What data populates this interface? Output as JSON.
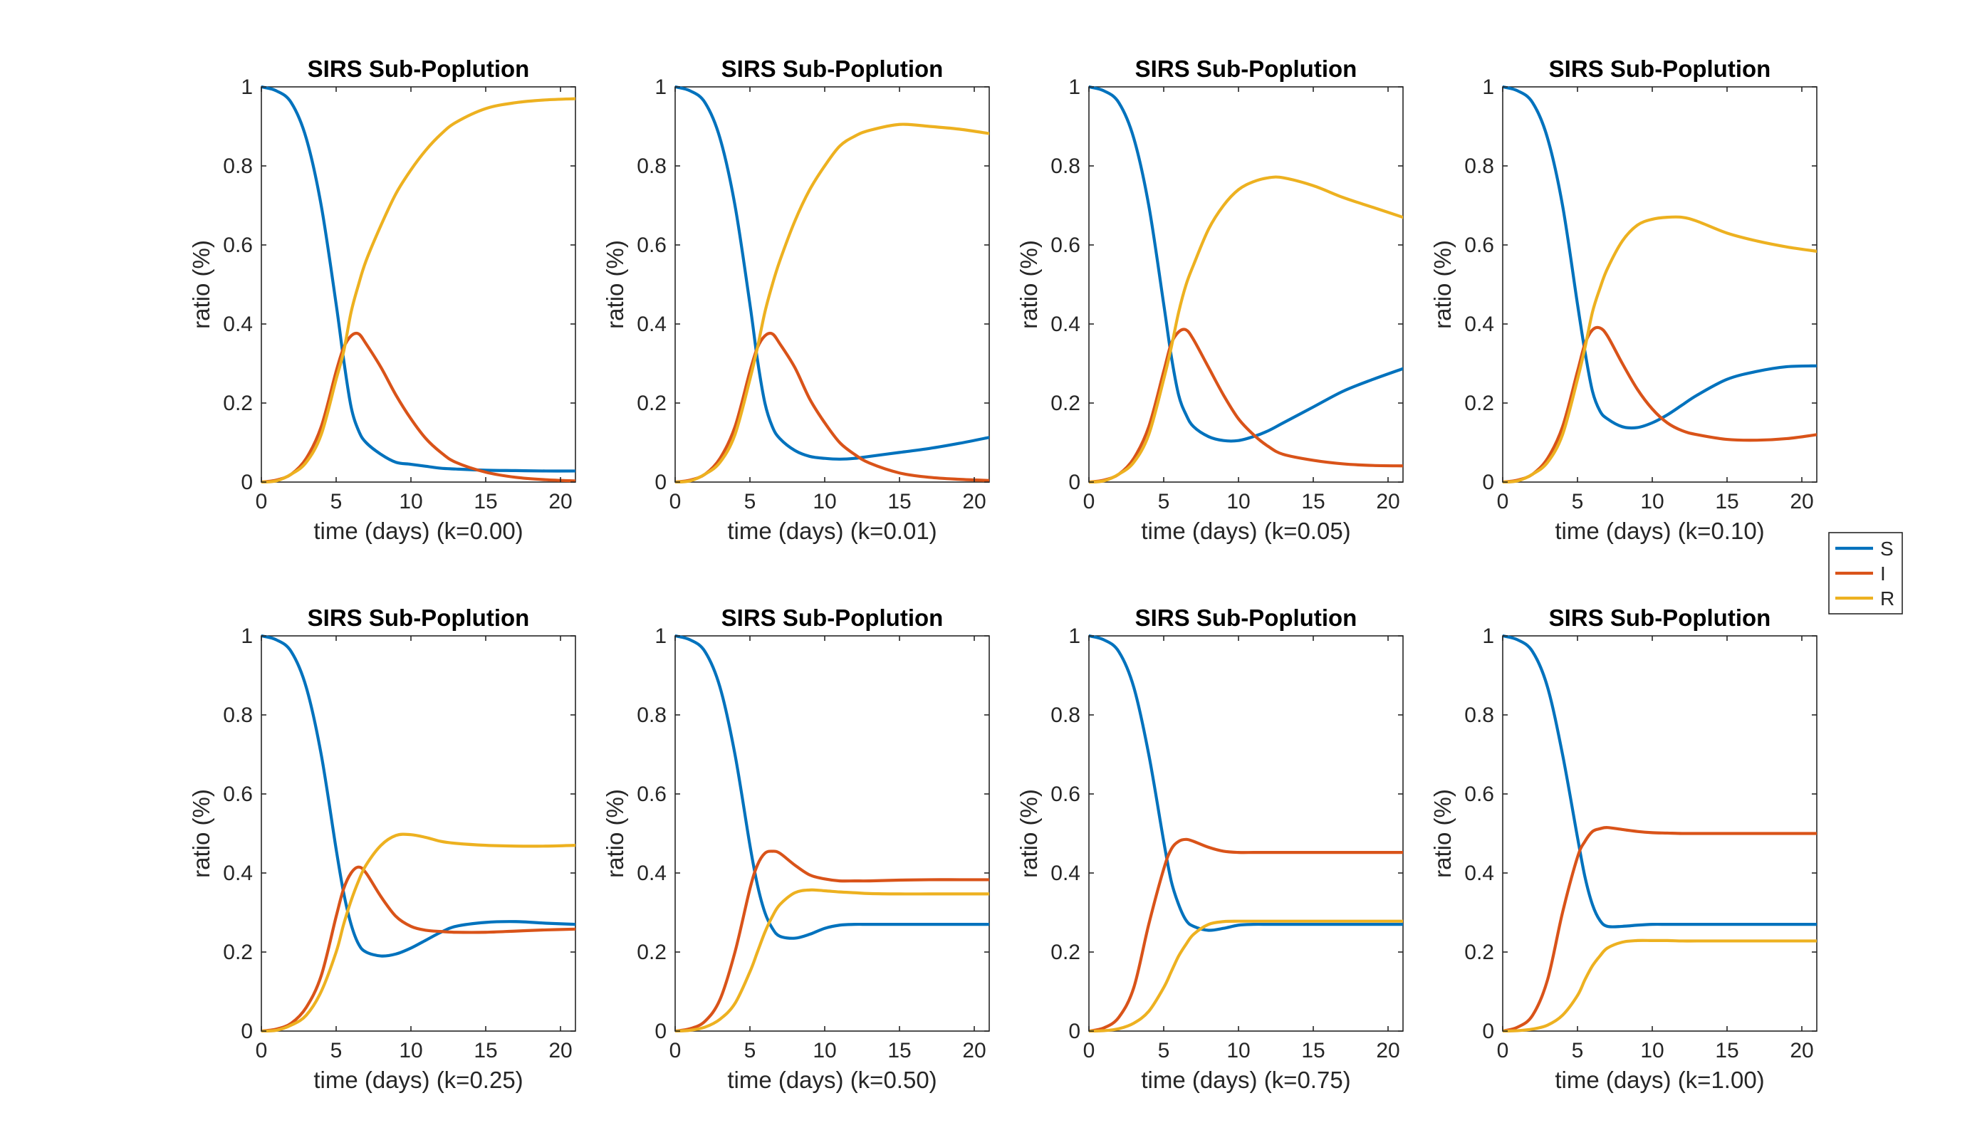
{
  "figure": {
    "background": "#ffffff",
    "axis_color": "#262626",
    "legend": {
      "placement": "right",
      "entries": [
        {
          "name": "S",
          "color": "#0072BD"
        },
        {
          "name": "I",
          "color": "#D95319"
        },
        {
          "name": "R",
          "color": "#EDB120"
        }
      ]
    }
  },
  "chart_data": [
    {
      "type": "line",
      "title": "SIRS Sub-Poplution",
      "xlabel": "time (days) (k=0.00)",
      "ylabel": "ratio (%)",
      "xlim": [
        0,
        21
      ],
      "ylim": [
        0,
        1
      ],
      "xticks": [
        "0",
        "5",
        "10",
        "15",
        "20"
      ],
      "yticks": [
        "0",
        "0.2",
        "0.4",
        "0.6",
        "0.8",
        "1"
      ],
      "grid": false,
      "x": [
        0,
        1,
        2,
        3,
        4,
        5,
        5.5,
        6,
        6.5,
        7,
        8,
        9,
        10,
        11,
        12,
        13,
        15,
        17,
        19,
        21
      ],
      "series": [
        {
          "name": "S",
          "values": [
            1.0,
            0.99,
            0.96,
            0.87,
            0.7,
            0.45,
            0.31,
            0.19,
            0.13,
            0.1,
            0.07,
            0.05,
            0.045,
            0.04,
            0.035,
            0.033,
            0.03,
            0.029,
            0.028,
            0.028
          ]
        },
        {
          "name": "I",
          "values": [
            0.0,
            0.005,
            0.02,
            0.06,
            0.14,
            0.28,
            0.34,
            0.37,
            0.375,
            0.35,
            0.29,
            0.22,
            0.16,
            0.11,
            0.075,
            0.05,
            0.025,
            0.012,
            0.006,
            0.003
          ]
        },
        {
          "name": "R",
          "values": [
            0.0,
            0.003,
            0.02,
            0.05,
            0.12,
            0.26,
            0.33,
            0.43,
            0.5,
            0.56,
            0.65,
            0.73,
            0.79,
            0.84,
            0.88,
            0.91,
            0.945,
            0.96,
            0.967,
            0.97
          ]
        }
      ]
    },
    {
      "type": "line",
      "title": "SIRS Sub-Poplution",
      "xlabel": "time (days) (k=0.01)",
      "ylabel": "ratio (%)",
      "xlim": [
        0,
        21
      ],
      "ylim": [
        0,
        1
      ],
      "xticks": [
        "0",
        "5",
        "10",
        "15",
        "20"
      ],
      "yticks": [
        "0",
        "0.2",
        "0.4",
        "0.6",
        "0.8",
        "1"
      ],
      "grid": false,
      "x": [
        0,
        1,
        2,
        3,
        4,
        5,
        5.5,
        6,
        6.5,
        7,
        8,
        9,
        10,
        11,
        12,
        13,
        15,
        17,
        19,
        21
      ],
      "series": [
        {
          "name": "S",
          "values": [
            1.0,
            0.99,
            0.96,
            0.87,
            0.7,
            0.45,
            0.31,
            0.2,
            0.14,
            0.11,
            0.08,
            0.065,
            0.06,
            0.058,
            0.06,
            0.065,
            0.075,
            0.085,
            0.098,
            0.113
          ]
        },
        {
          "name": "I",
          "values": [
            0.0,
            0.005,
            0.02,
            0.06,
            0.14,
            0.28,
            0.34,
            0.37,
            0.375,
            0.35,
            0.29,
            0.21,
            0.15,
            0.1,
            0.07,
            0.048,
            0.023,
            0.012,
            0.007,
            0.004
          ]
        },
        {
          "name": "R",
          "values": [
            0.0,
            0.003,
            0.02,
            0.05,
            0.12,
            0.26,
            0.34,
            0.43,
            0.5,
            0.56,
            0.66,
            0.74,
            0.8,
            0.85,
            0.875,
            0.89,
            0.905,
            0.9,
            0.893,
            0.882
          ]
        }
      ]
    },
    {
      "type": "line",
      "title": "SIRS Sub-Poplution",
      "xlabel": "time (days) (k=0.05)",
      "ylabel": "ratio (%)",
      "xlim": [
        0,
        21
      ],
      "ylim": [
        0,
        1
      ],
      "xticks": [
        "0",
        "5",
        "10",
        "15",
        "20"
      ],
      "yticks": [
        "0",
        "0.2",
        "0.4",
        "0.6",
        "0.8",
        "1"
      ],
      "grid": false,
      "x": [
        0,
        1,
        2,
        3,
        4,
        5,
        5.5,
        6,
        6.5,
        7,
        8,
        9,
        10,
        11,
        12,
        13,
        15,
        17,
        19,
        21
      ],
      "series": [
        {
          "name": "S",
          "values": [
            1.0,
            0.99,
            0.96,
            0.87,
            0.7,
            0.45,
            0.32,
            0.22,
            0.17,
            0.14,
            0.115,
            0.105,
            0.105,
            0.115,
            0.13,
            0.15,
            0.19,
            0.23,
            0.26,
            0.287
          ]
        },
        {
          "name": "I",
          "values": [
            0.0,
            0.005,
            0.02,
            0.06,
            0.14,
            0.28,
            0.35,
            0.38,
            0.385,
            0.36,
            0.29,
            0.22,
            0.16,
            0.12,
            0.09,
            0.07,
            0.055,
            0.046,
            0.042,
            0.041
          ]
        },
        {
          "name": "R",
          "values": [
            0.0,
            0.003,
            0.02,
            0.05,
            0.12,
            0.26,
            0.34,
            0.43,
            0.5,
            0.55,
            0.64,
            0.7,
            0.74,
            0.76,
            0.77,
            0.77,
            0.75,
            0.72,
            0.695,
            0.67
          ]
        }
      ]
    },
    {
      "type": "line",
      "title": "SIRS Sub-Poplution",
      "xlabel": "time (days) (k=0.10)",
      "ylabel": "ratio (%)",
      "xlim": [
        0,
        21
      ],
      "ylim": [
        0,
        1
      ],
      "xticks": [
        "0",
        "5",
        "10",
        "15",
        "20"
      ],
      "yticks": [
        "0",
        "0.2",
        "0.4",
        "0.6",
        "0.8",
        "1"
      ],
      "grid": false,
      "x": [
        0,
        1,
        2,
        3,
        4,
        5,
        5.5,
        6,
        6.5,
        7,
        8,
        9,
        10,
        11,
        12,
        13,
        15,
        17,
        19,
        21
      ],
      "series": [
        {
          "name": "S",
          "values": [
            1.0,
            0.99,
            0.96,
            0.87,
            0.7,
            0.45,
            0.33,
            0.23,
            0.18,
            0.16,
            0.14,
            0.138,
            0.15,
            0.17,
            0.195,
            0.22,
            0.26,
            0.28,
            0.292,
            0.294
          ]
        },
        {
          "name": "I",
          "values": [
            0.0,
            0.005,
            0.02,
            0.06,
            0.14,
            0.28,
            0.35,
            0.385,
            0.39,
            0.37,
            0.3,
            0.235,
            0.185,
            0.15,
            0.13,
            0.12,
            0.108,
            0.106,
            0.11,
            0.12
          ]
        },
        {
          "name": "R",
          "values": [
            0.0,
            0.003,
            0.02,
            0.05,
            0.12,
            0.26,
            0.34,
            0.43,
            0.49,
            0.54,
            0.61,
            0.65,
            0.665,
            0.67,
            0.67,
            0.66,
            0.63,
            0.61,
            0.595,
            0.584
          ]
        }
      ]
    },
    {
      "type": "line",
      "title": "SIRS Sub-Poplution",
      "xlabel": "time (days) (k=0.25)",
      "ylabel": "ratio (%)",
      "xlim": [
        0,
        21
      ],
      "ylim": [
        0,
        1
      ],
      "xticks": [
        "0",
        "5",
        "10",
        "15",
        "20"
      ],
      "yticks": [
        "0",
        "0.2",
        "0.4",
        "0.6",
        "0.8",
        "1"
      ],
      "grid": false,
      "x": [
        0,
        1,
        2,
        3,
        4,
        5,
        5.5,
        6,
        6.5,
        7,
        8,
        9,
        10,
        11,
        12,
        13,
        15,
        17,
        19,
        21
      ],
      "series": [
        {
          "name": "S",
          "values": [
            1.0,
            0.99,
            0.96,
            0.87,
            0.7,
            0.46,
            0.35,
            0.27,
            0.22,
            0.2,
            0.19,
            0.195,
            0.21,
            0.23,
            0.25,
            0.265,
            0.275,
            0.277,
            0.273,
            0.27
          ]
        },
        {
          "name": "I",
          "values": [
            0.0,
            0.005,
            0.02,
            0.06,
            0.14,
            0.29,
            0.36,
            0.4,
            0.415,
            0.4,
            0.34,
            0.29,
            0.265,
            0.255,
            0.252,
            0.25,
            0.25,
            0.253,
            0.256,
            0.258
          ]
        },
        {
          "name": "R",
          "values": [
            0.0,
            0.002,
            0.015,
            0.04,
            0.1,
            0.2,
            0.27,
            0.33,
            0.38,
            0.42,
            0.47,
            0.495,
            0.497,
            0.49,
            0.48,
            0.475,
            0.47,
            0.468,
            0.468,
            0.47
          ]
        }
      ]
    },
    {
      "type": "line",
      "title": "SIRS Sub-Poplution",
      "xlabel": "time (days) (k=0.50)",
      "ylabel": "ratio (%)",
      "xlim": [
        0,
        21
      ],
      "ylim": [
        0,
        1
      ],
      "xticks": [
        "0",
        "5",
        "10",
        "15",
        "20"
      ],
      "yticks": [
        "0",
        "0.2",
        "0.4",
        "0.6",
        "0.8",
        "1"
      ],
      "grid": false,
      "x": [
        0,
        1,
        2,
        3,
        4,
        5,
        5.5,
        6,
        6.5,
        7,
        8,
        9,
        10,
        11,
        12,
        13,
        15,
        17,
        19,
        21
      ],
      "series": [
        {
          "name": "S",
          "values": [
            1.0,
            0.99,
            0.96,
            0.87,
            0.7,
            0.47,
            0.37,
            0.3,
            0.26,
            0.24,
            0.235,
            0.245,
            0.26,
            0.268,
            0.27,
            0.27,
            0.27,
            0.27,
            0.27,
            0.27
          ]
        },
        {
          "name": "I",
          "values": [
            0.0,
            0.006,
            0.025,
            0.08,
            0.2,
            0.36,
            0.42,
            0.45,
            0.455,
            0.45,
            0.42,
            0.395,
            0.385,
            0.38,
            0.38,
            0.38,
            0.382,
            0.383,
            0.383,
            0.383
          ]
        },
        {
          "name": "R",
          "values": [
            0.0,
            0.002,
            0.01,
            0.03,
            0.07,
            0.15,
            0.2,
            0.25,
            0.29,
            0.32,
            0.35,
            0.357,
            0.355,
            0.352,
            0.35,
            0.348,
            0.347,
            0.347,
            0.347,
            0.347
          ]
        }
      ]
    },
    {
      "type": "line",
      "title": "SIRS Sub-Poplution",
      "xlabel": "time (days) (k=0.75)",
      "ylabel": "ratio (%)",
      "xlim": [
        0,
        21
      ],
      "ylim": [
        0,
        1
      ],
      "xticks": [
        "0",
        "5",
        "10",
        "15",
        "20"
      ],
      "yticks": [
        "0",
        "0.2",
        "0.4",
        "0.6",
        "0.8",
        "1"
      ],
      "grid": false,
      "x": [
        0,
        1,
        2,
        3,
        4,
        5,
        5.5,
        6,
        6.5,
        7,
        8,
        9,
        10,
        11,
        12,
        13,
        15,
        17,
        19,
        21
      ],
      "series": [
        {
          "name": "S",
          "values": [
            1.0,
            0.99,
            0.96,
            0.87,
            0.7,
            0.48,
            0.38,
            0.32,
            0.28,
            0.265,
            0.255,
            0.26,
            0.268,
            0.27,
            0.27,
            0.27,
            0.27,
            0.27,
            0.27,
            0.27
          ]
        },
        {
          "name": "I",
          "values": [
            0.0,
            0.008,
            0.035,
            0.11,
            0.27,
            0.41,
            0.46,
            0.48,
            0.485,
            0.48,
            0.465,
            0.455,
            0.452,
            0.452,
            0.452,
            0.452,
            0.452,
            0.452,
            0.452,
            0.452
          ]
        },
        {
          "name": "R",
          "values": [
            0.0,
            0.001,
            0.006,
            0.02,
            0.05,
            0.11,
            0.15,
            0.19,
            0.22,
            0.245,
            0.27,
            0.277,
            0.278,
            0.278,
            0.278,
            0.278,
            0.278,
            0.278,
            0.278,
            0.278
          ]
        }
      ]
    },
    {
      "type": "line",
      "title": "SIRS Sub-Poplution",
      "xlabel": "time (days) (k=1.00)",
      "ylabel": "ratio (%)",
      "xlim": [
        0,
        21
      ],
      "ylim": [
        0,
        1
      ],
      "xticks": [
        "0",
        "5",
        "10",
        "15",
        "20"
      ],
      "yticks": [
        "0",
        "0.2",
        "0.4",
        "0.6",
        "0.8",
        "1"
      ],
      "grid": false,
      "x": [
        0,
        1,
        2,
        3,
        4,
        5,
        5.5,
        6,
        6.5,
        7,
        8,
        9,
        10,
        11,
        12,
        13,
        15,
        17,
        19,
        21
      ],
      "series": [
        {
          "name": "S",
          "values": [
            1.0,
            0.99,
            0.96,
            0.87,
            0.7,
            0.49,
            0.39,
            0.32,
            0.28,
            0.265,
            0.265,
            0.268,
            0.27,
            0.27,
            0.27,
            0.27,
            0.27,
            0.27,
            0.27,
            0.27
          ]
        },
        {
          "name": "I",
          "values": [
            0.0,
            0.01,
            0.04,
            0.13,
            0.3,
            0.44,
            0.48,
            0.505,
            0.512,
            0.515,
            0.51,
            0.505,
            0.502,
            0.501,
            0.5,
            0.5,
            0.5,
            0.5,
            0.5,
            0.5
          ]
        },
        {
          "name": "R",
          "values": [
            0.0,
            0.001,
            0.005,
            0.015,
            0.04,
            0.09,
            0.13,
            0.165,
            0.19,
            0.21,
            0.225,
            0.229,
            0.229,
            0.229,
            0.228,
            0.228,
            0.228,
            0.228,
            0.228,
            0.228
          ]
        }
      ]
    }
  ]
}
